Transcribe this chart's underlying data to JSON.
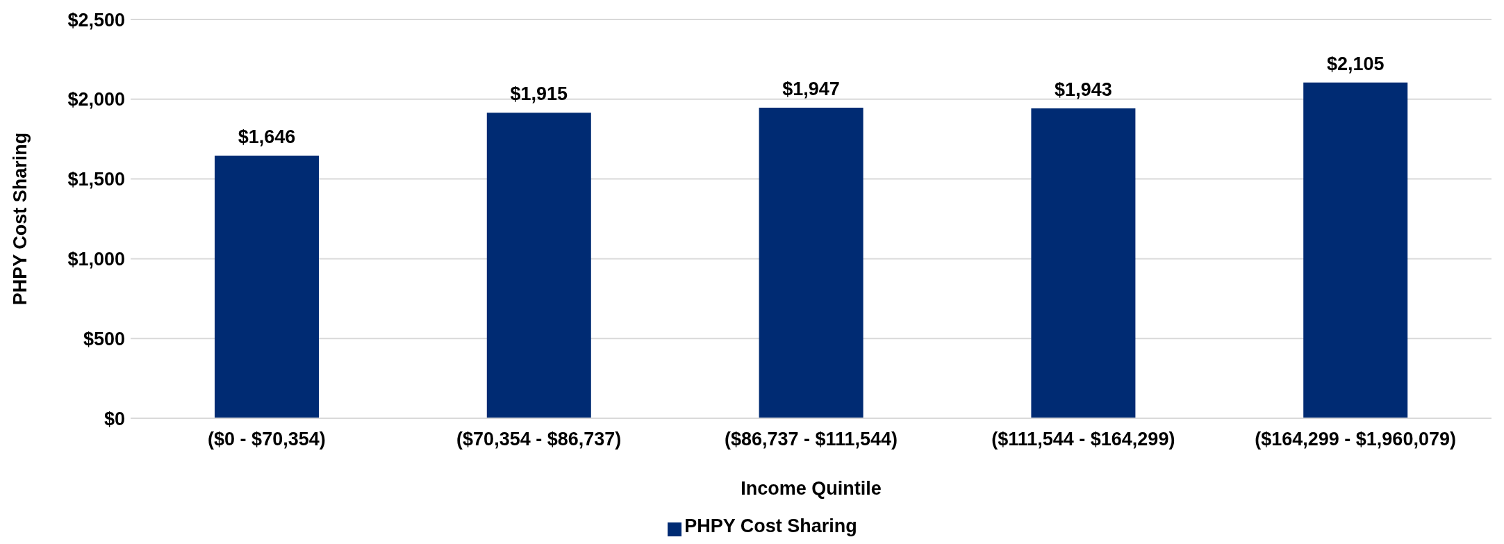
{
  "chart_data": {
    "type": "bar",
    "xlabel": "Income Quintile",
    "ylabel": "PHPY Cost Sharing",
    "categories": [
      "($0 - $70,354)",
      "($70,354 - $86,737)",
      "($86,737 - $111,544)",
      "($111,544 - $164,299)",
      "($164,299 - $1,960,079)"
    ],
    "series": [
      {
        "name": "PHPY Cost Sharing",
        "color": "#002b73",
        "values": [
          1646,
          1915,
          1947,
          1943,
          2105
        ],
        "value_labels": [
          "$1,646",
          "$1,915",
          "$1,947",
          "$1,943",
          "$2,105"
        ]
      }
    ],
    "ylim": [
      0,
      2500
    ],
    "yticks": [
      {
        "value": 0,
        "label": "$0"
      },
      {
        "value": 500,
        "label": "$500"
      },
      {
        "value": 1000,
        "label": "$1,000"
      },
      {
        "value": 1500,
        "label": "$1,500"
      },
      {
        "value": 2000,
        "label": "$2,000"
      },
      {
        "value": 2500,
        "label": "$2,500"
      }
    ],
    "grid": "y",
    "legend": "bottom"
  }
}
